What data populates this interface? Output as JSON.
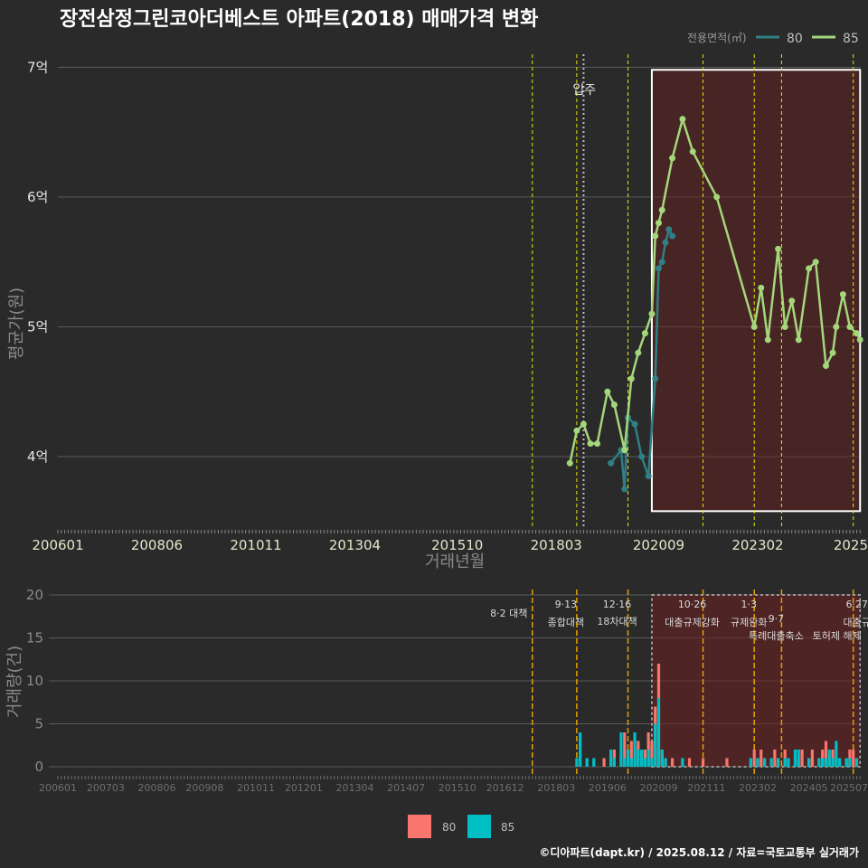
{
  "chart_data": [
    {
      "type": "line",
      "title": "장전삼정그린코아더베스트 아파트(2018) 매매가격 변화",
      "xlabel": "거래년월",
      "ylabel": "평균가(원)",
      "legend": {
        "title": "전용면적(㎡)",
        "placement": "top-right",
        "entries": [
          "80",
          "85"
        ]
      },
      "x_ticks": [
        "200601",
        "200806",
        "201011",
        "201304",
        "201510",
        "201803",
        "202009",
        "202302",
        "2025"
      ],
      "y_ticks": [
        "4억",
        "5억",
        "6억",
        "7억"
      ],
      "ylim": [
        3.45,
        7.1
      ],
      "y_unit": "억",
      "annotation": "입주",
      "series": [
        {
          "name": "80",
          "color": "#2f7f85",
          "x": [
            "2019.07",
            "2019.10",
            "2019.11",
            "2019.12",
            "2020.02",
            "2020.04",
            "2020.06",
            "2020.08",
            "2020.09",
            "2020.10",
            "2020.11",
            "2020.12",
            "2021.01"
          ],
          "y": [
            3.95,
            4.05,
            3.75,
            4.3,
            4.25,
            4.0,
            3.85,
            4.6,
            5.45,
            5.5,
            5.65,
            5.75,
            5.7
          ]
        },
        {
          "name": "85",
          "color": "#a4d67a",
          "x": [
            "2018.07",
            "2018.09",
            "2018.11",
            "2019.01",
            "2019.03",
            "2019.06",
            "2019.08",
            "2019.11",
            "2020.01",
            "2020.03",
            "2020.05",
            "2020.07",
            "2020.08",
            "2020.09",
            "2020.10",
            "2021.01",
            "2021.04",
            "2021.07",
            "2022.02",
            "2023.01",
            "2023.03",
            "2023.05",
            "2023.08",
            "2023.10",
            "2023.12",
            "2024.02",
            "2024.05",
            "2024.07",
            "2024.10",
            "2024.12",
            "2025.01",
            "2025.03",
            "2025.05",
            "2025.07",
            "2025.08"
          ],
          "y": [
            3.95,
            4.2,
            4.25,
            4.1,
            4.1,
            4.5,
            4.4,
            4.05,
            4.6,
            4.8,
            4.95,
            5.1,
            5.7,
            5.8,
            5.9,
            6.3,
            6.6,
            6.35,
            6.0,
            5.0,
            5.3,
            4.9,
            5.6,
            5.0,
            5.2,
            4.9,
            5.45,
            5.5,
            4.7,
            4.8,
            5.0,
            5.25,
            5.0,
            4.95,
            4.9
          ]
        }
      ]
    },
    {
      "type": "bar",
      "xlabel": "",
      "ylabel": "거래량(건)",
      "ylim": [
        0,
        20
      ],
      "y_ticks": [
        "0",
        "5",
        "10",
        "15",
        "20"
      ],
      "x_ticks": [
        "200601",
        "200703",
        "200806",
        "200908",
        "201011",
        "201201",
        "201304",
        "201407",
        "201510",
        "201612",
        "201803",
        "201906",
        "202009",
        "202111",
        "202302",
        "202405",
        "202507"
      ],
      "legend": {
        "placement": "bottom",
        "entries": [
          "80",
          "85"
        ]
      },
      "series": [
        {
          "name": "80",
          "color": "#f8766d"
        },
        {
          "name": "85",
          "color": "#00bfc4"
        }
      ],
      "bars": [
        {
          "x": "2018.09",
          "v80": 0,
          "v85": 1
        },
        {
          "x": "2018.10",
          "v80": 0,
          "v85": 4
        },
        {
          "x": "2018.12",
          "v80": 1,
          "v85": 1
        },
        {
          "x": "2019.02",
          "v80": 0,
          "v85": 1
        },
        {
          "x": "2019.05",
          "v80": 1,
          "v85": 0
        },
        {
          "x": "2019.07",
          "v80": 0,
          "v85": 2
        },
        {
          "x": "2019.08",
          "v80": 2,
          "v85": 1
        },
        {
          "x": "2019.10",
          "v80": 1,
          "v85": 4
        },
        {
          "x": "2019.11",
          "v80": 4,
          "v85": 1
        },
        {
          "x": "2019.12",
          "v80": 0,
          "v85": 2
        },
        {
          "x": "2020.01",
          "v80": 3,
          "v85": 1
        },
        {
          "x": "2020.02",
          "v80": 2,
          "v85": 4
        },
        {
          "x": "2020.03",
          "v80": 3,
          "v85": 2
        },
        {
          "x": "2020.04",
          "v80": 1,
          "v85": 2
        },
        {
          "x": "2020.05",
          "v80": 2,
          "v85": 1
        },
        {
          "x": "2020.06",
          "v80": 4,
          "v85": 2
        },
        {
          "x": "2020.07",
          "v80": 3,
          "v85": 1
        },
        {
          "x": "2020.08",
          "v80": 7,
          "v85": 5
        },
        {
          "x": "2020.09",
          "v80": 12,
          "v85": 8
        },
        {
          "x": "2020.10",
          "v80": 2,
          "v85": 2
        },
        {
          "x": "2020.11",
          "v80": 1,
          "v85": 1
        },
        {
          "x": "2021.01",
          "v80": 1,
          "v85": 0
        },
        {
          "x": "2021.04",
          "v80": 1,
          "v85": 1
        },
        {
          "x": "2021.06",
          "v80": 1,
          "v85": 0
        },
        {
          "x": "2021.10",
          "v80": 1,
          "v85": 0
        },
        {
          "x": "2022.05",
          "v80": 1,
          "v85": 0
        },
        {
          "x": "2022.12",
          "v80": 1,
          "v85": 1
        },
        {
          "x": "2023.01",
          "v80": 2,
          "v85": 0
        },
        {
          "x": "2023.02",
          "v80": 1,
          "v85": 1
        },
        {
          "x": "2023.03",
          "v80": 2,
          "v85": 0
        },
        {
          "x": "2023.04",
          "v80": 1,
          "v85": 1
        },
        {
          "x": "2023.06",
          "v80": 1,
          "v85": 1
        },
        {
          "x": "2023.07",
          "v80": 2,
          "v85": 0
        },
        {
          "x": "2023.08",
          "v80": 1,
          "v85": 1
        },
        {
          "x": "2023.10",
          "v80": 2,
          "v85": 1
        },
        {
          "x": "2023.11",
          "v80": 1,
          "v85": 1
        },
        {
          "x": "2024.01",
          "v80": 2,
          "v85": 2
        },
        {
          "x": "2024.02",
          "v80": 1,
          "v85": 2
        },
        {
          "x": "2024.03",
          "v80": 2,
          "v85": 0
        },
        {
          "x": "2024.05",
          "v80": 1,
          "v85": 1
        },
        {
          "x": "2024.06",
          "v80": 2,
          "v85": 0
        },
        {
          "x": "2024.08",
          "v80": 1,
          "v85": 1
        },
        {
          "x": "2024.09",
          "v80": 2,
          "v85": 1
        },
        {
          "x": "2024.10",
          "v80": 3,
          "v85": 1
        },
        {
          "x": "2024.11",
          "v80": 1,
          "v85": 2
        },
        {
          "x": "2024.12",
          "v80": 2,
          "v85": 1
        },
        {
          "x": "2025.01",
          "v80": 1,
          "v85": 3
        },
        {
          "x": "2025.02",
          "v80": 1,
          "v85": 1
        },
        {
          "x": "2025.04",
          "v80": 1,
          "v85": 1
        },
        {
          "x": "2025.05",
          "v80": 2,
          "v85": 1
        },
        {
          "x": "2025.06",
          "v80": 2,
          "v85": 0
        },
        {
          "x": "2025.07",
          "v80": 1,
          "v85": 1
        }
      ],
      "policy_labels": [
        {
          "date": "2017.08",
          "text": "8·2 대책"
        },
        {
          "date": "2018.09",
          "date_label": "9·13",
          "text": "종합대책"
        },
        {
          "date": "2019.12",
          "date_label": "12·16",
          "text": "18차대책"
        },
        {
          "date": "2021.10",
          "date_label": "10·26",
          "text": "대출규제강화"
        },
        {
          "date": "2023.01",
          "date_label": "1·3",
          "text": "규제완화"
        },
        {
          "date": "2023.09",
          "date_label": "9·7",
          "text": "특례대출축소"
        },
        {
          "date": "2025.06",
          "date_label": "6·27",
          "text": "대출규"
        },
        {
          "date": "2025.06",
          "text": "토허제 해제"
        }
      ]
    }
  ],
  "footer": "©디아파트(dapt.kr) / 2025.08.12 / 자료=국토교통부 실거래가"
}
